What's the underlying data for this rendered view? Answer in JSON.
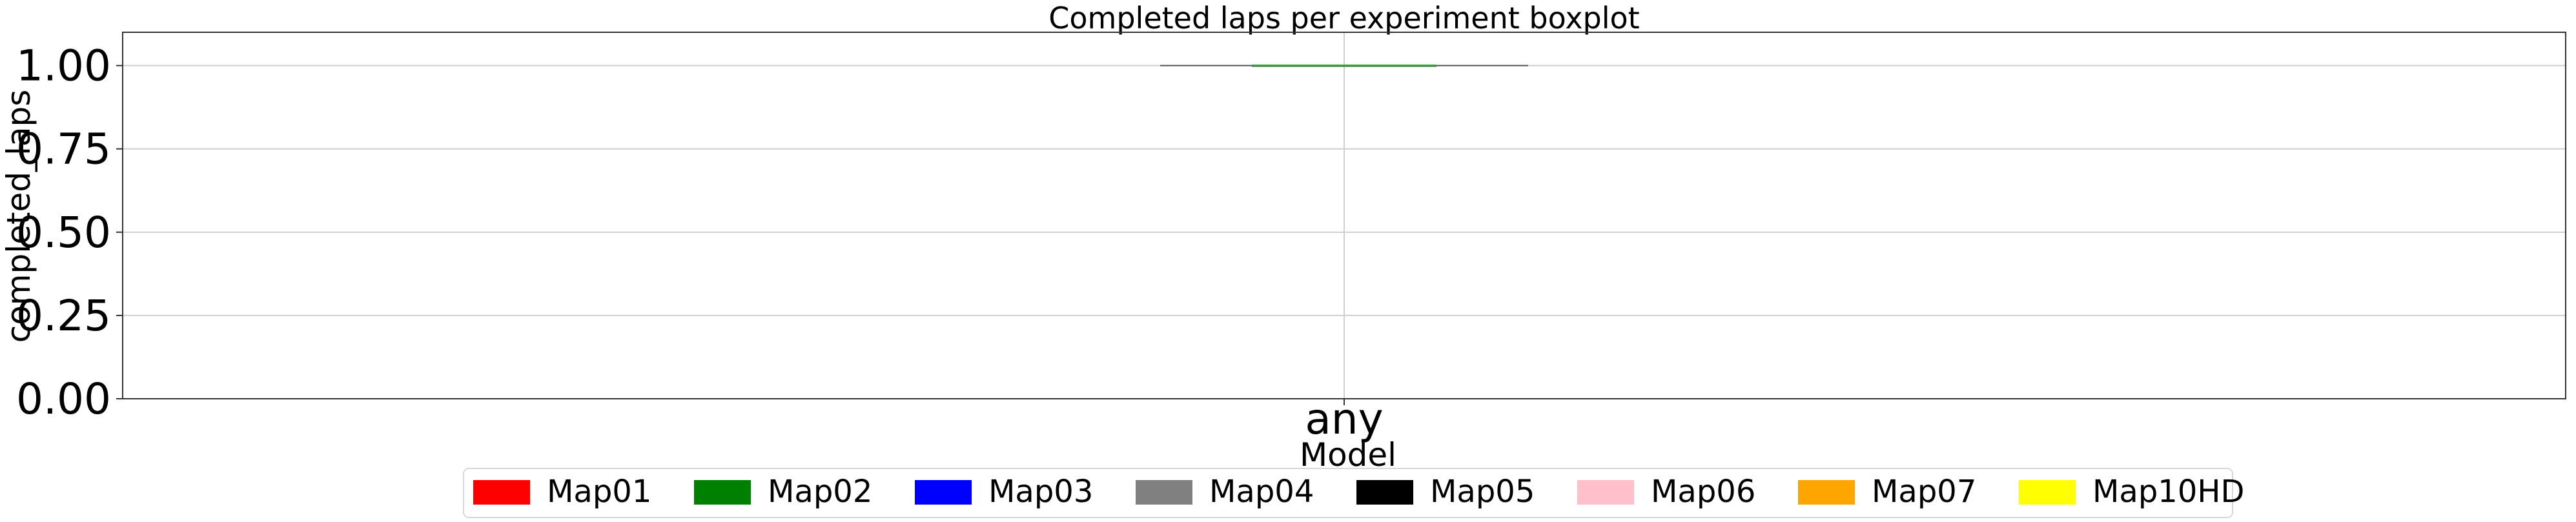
{
  "chart_data": {
    "type": "boxplot",
    "title": "Completed laps per experiment boxplot",
    "xlabel": "Model",
    "ylabel": "completed_laps",
    "categories": [
      "any"
    ],
    "ylim": [
      0,
      1.1
    ],
    "yticks": [
      "0.00",
      "0.25",
      "0.50",
      "0.75",
      "1.00"
    ],
    "ytick_values": [
      0,
      0.25,
      0.5,
      0.75,
      1.0
    ],
    "grid": true,
    "legend_position": "bottom-center",
    "series": [
      {
        "name": "Map01",
        "color": "#ff0000",
        "values": [
          1.0
        ]
      },
      {
        "name": "Map02",
        "color": "#008000",
        "values": [
          1.0
        ]
      },
      {
        "name": "Map03",
        "color": "#0000ff",
        "values": [
          1.0
        ]
      },
      {
        "name": "Map04",
        "color": "#808080",
        "values": [
          1.0
        ]
      },
      {
        "name": "Map05",
        "color": "#000000",
        "values": [
          1.0
        ]
      },
      {
        "name": "Map06",
        "color": "#ffc0cb",
        "values": [
          1.0
        ]
      },
      {
        "name": "Map07",
        "color": "#ffa500",
        "values": [
          1.0
        ]
      },
      {
        "name": "Map10HD",
        "color": "#ffff00",
        "values": [
          1.0
        ]
      }
    ],
    "box": {
      "min": 1.0,
      "q1": 1.0,
      "median": 1.0,
      "q3": 1.0,
      "max": 1.0,
      "median_color": "#2ca02c"
    }
  }
}
